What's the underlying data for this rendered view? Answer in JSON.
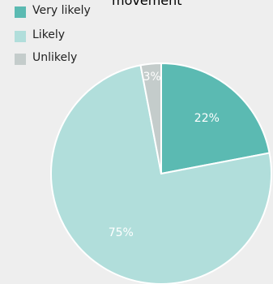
{
  "chart_data": {
    "type": "pie",
    "title": "movement",
    "categories": [
      "Very likely",
      "Likely",
      "Unlikely"
    ],
    "values": [
      22,
      75,
      3
    ],
    "data_labels": [
      "22%",
      "75%",
      "3%"
    ],
    "colors": [
      "#5bbab2",
      "#b1dedb",
      "#c4cccb"
    ],
    "legend_placement": "top-left"
  }
}
